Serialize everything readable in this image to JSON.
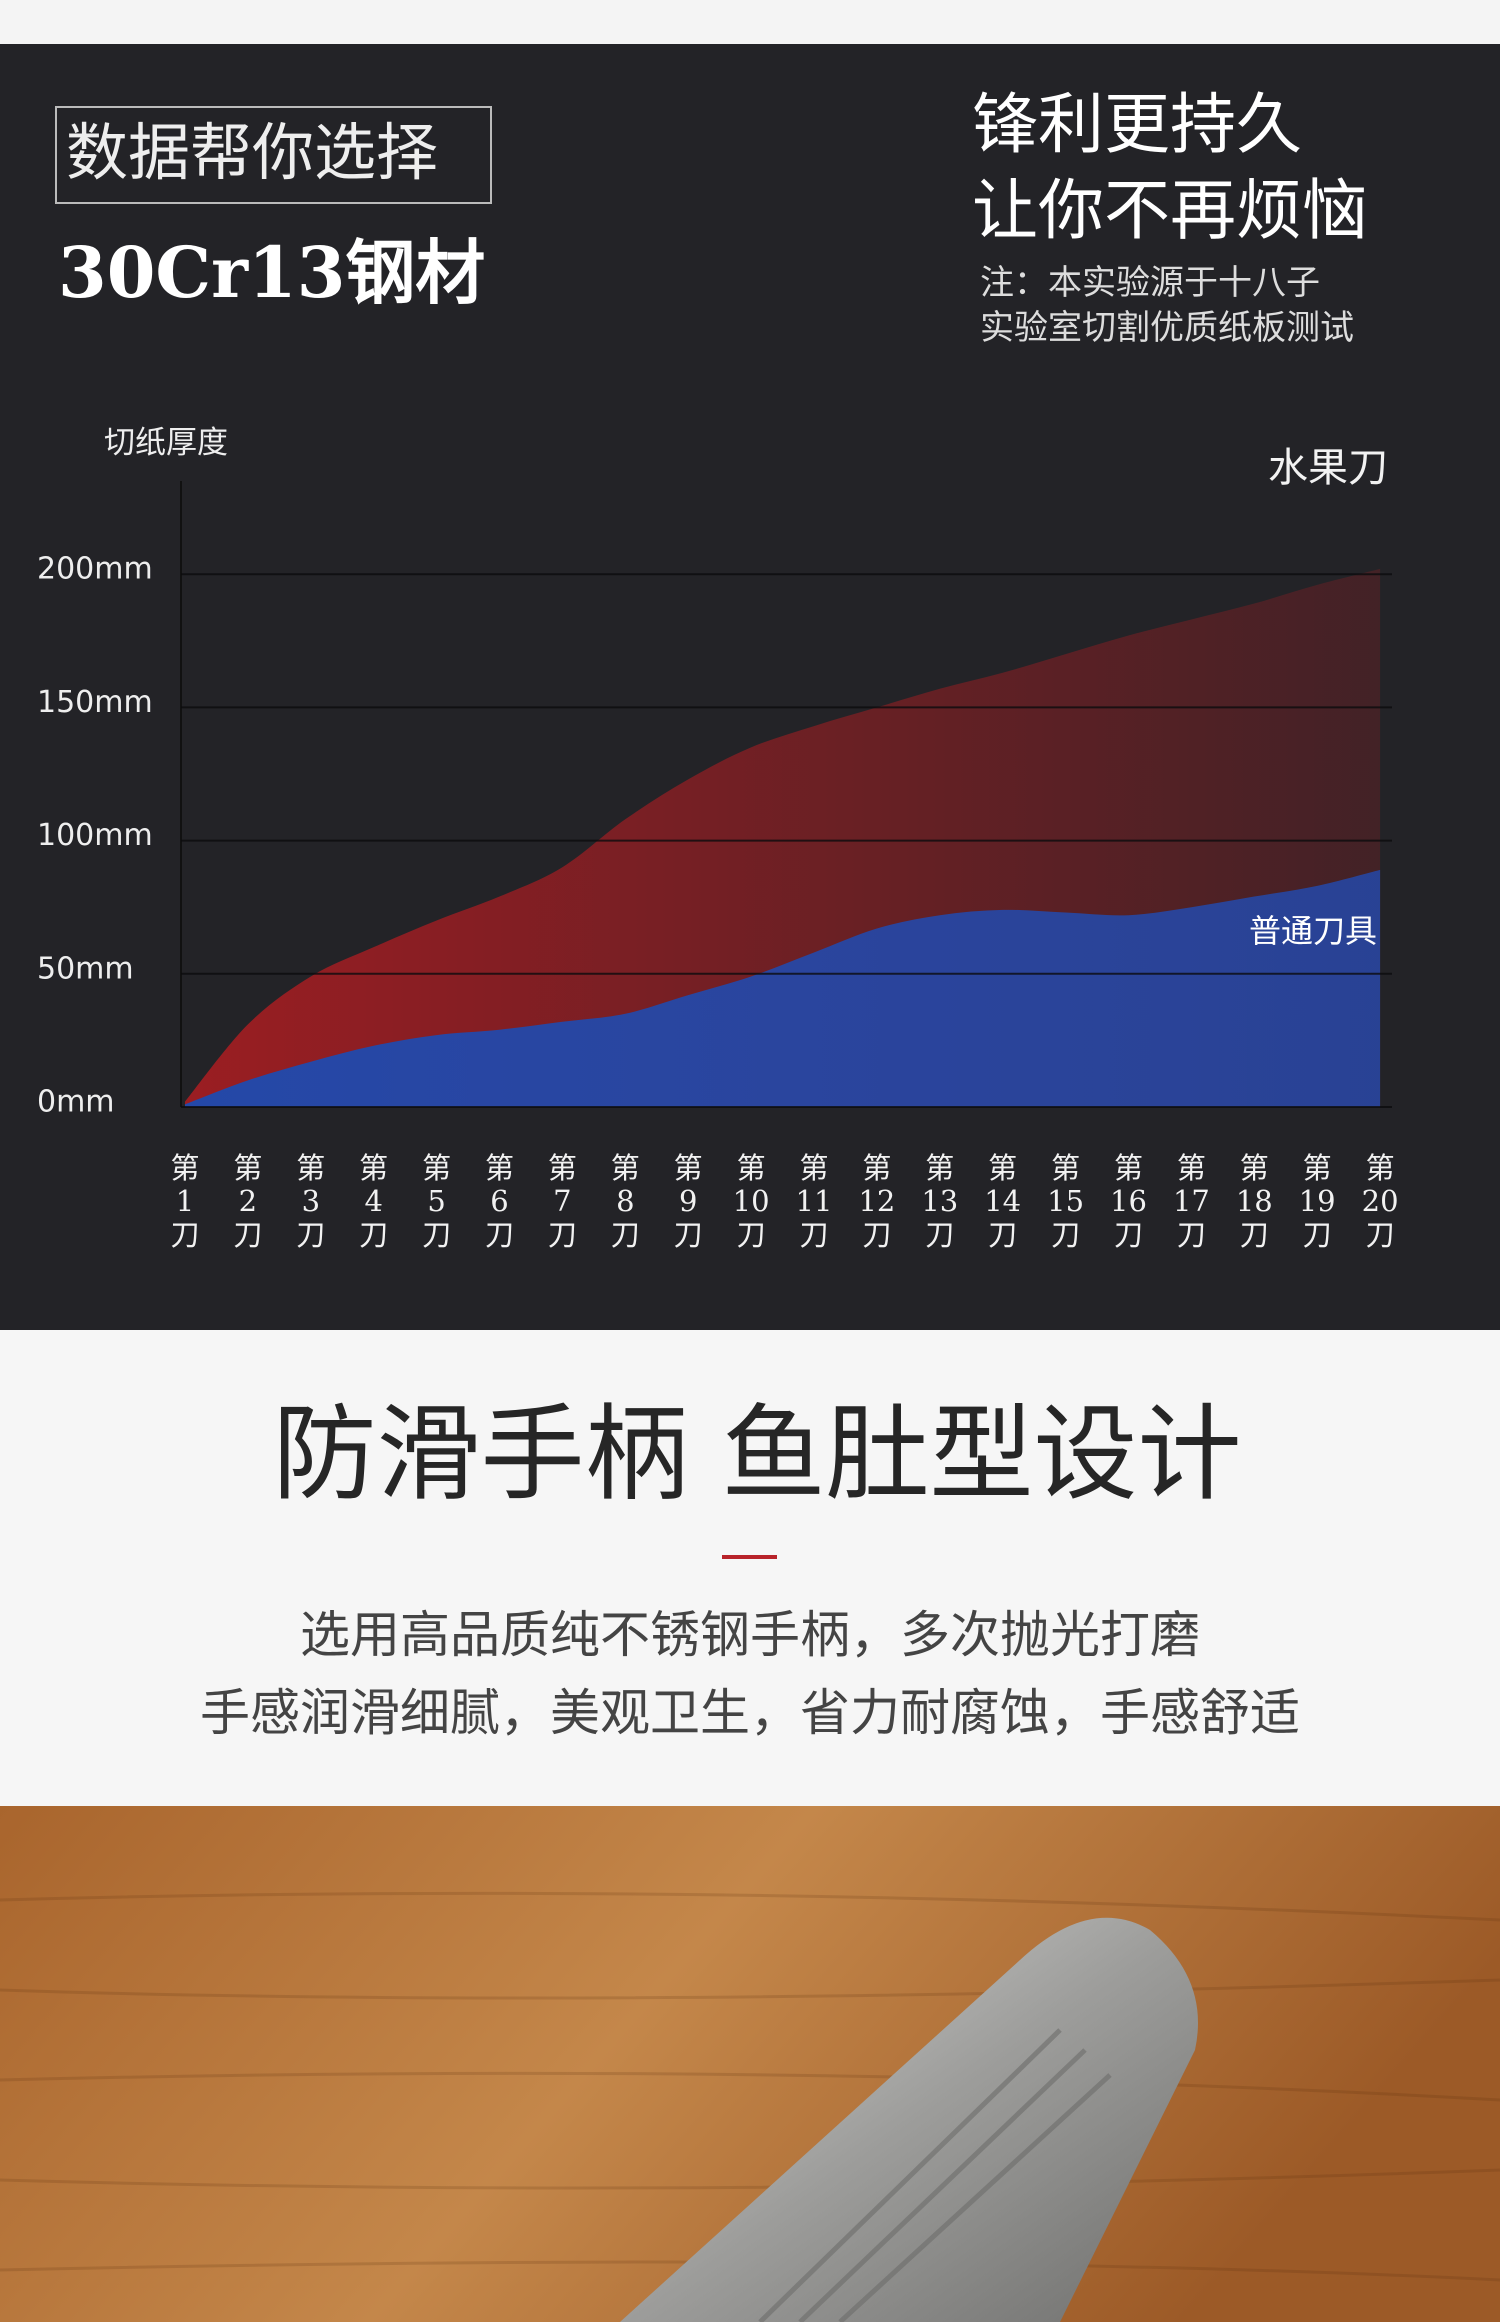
{
  "header": {
    "badge": "数据帮你选择",
    "material": "30Cr13钢材",
    "slogan_1": "锋利更持久",
    "slogan_2": "让你不再烦恼",
    "note_1": "注：本实验源于十八子",
    "note_2": "实验室切割优质纸板测试"
  },
  "chart_data": {
    "type": "area",
    "y_label": "切纸厚度",
    "categories": [
      "第1刀",
      "第2刀",
      "第3刀",
      "第4刀",
      "第5刀",
      "第6刀",
      "第7刀",
      "第8刀",
      "第9刀",
      "第10刀",
      "第11刀",
      "第12刀",
      "第13刀",
      "第14刀",
      "第15刀",
      "第16刀",
      "第17刀",
      "第18刀",
      "第19刀",
      "第20刀"
    ],
    "series": [
      {
        "name": "水果刀",
        "color": "#a11d22",
        "values": [
          2,
          31,
          49,
          60,
          70,
          79,
          90,
          108,
          123,
          135,
          143,
          150,
          157,
          163,
          170,
          177,
          183,
          189,
          196,
          202
        ]
      },
      {
        "name": "普通刀具",
        "color": "#2448a8",
        "values": [
          1,
          10,
          17,
          23,
          27,
          29,
          32,
          35,
          42,
          49,
          58,
          67,
          72,
          74,
          73,
          72,
          75,
          79,
          83,
          89
        ]
      }
    ],
    "ylim": [
      0,
      235
    ],
    "yticks": [
      {
        "value": 0,
        "label": "0mm"
      },
      {
        "value": 50,
        "label": "50mm"
      },
      {
        "value": 100,
        "label": "100mm"
      },
      {
        "value": 150,
        "label": "150mm"
      },
      {
        "value": 200,
        "label": "200mm"
      }
    ],
    "grid": true
  },
  "feature": {
    "title": "防滑手柄 鱼肚型设计",
    "line_1": "选用高品质纯不锈钢手柄，多次抛光打磨",
    "line_2": "手感润滑细腻，美观卫生，省力耐腐蚀，手感舒适"
  }
}
